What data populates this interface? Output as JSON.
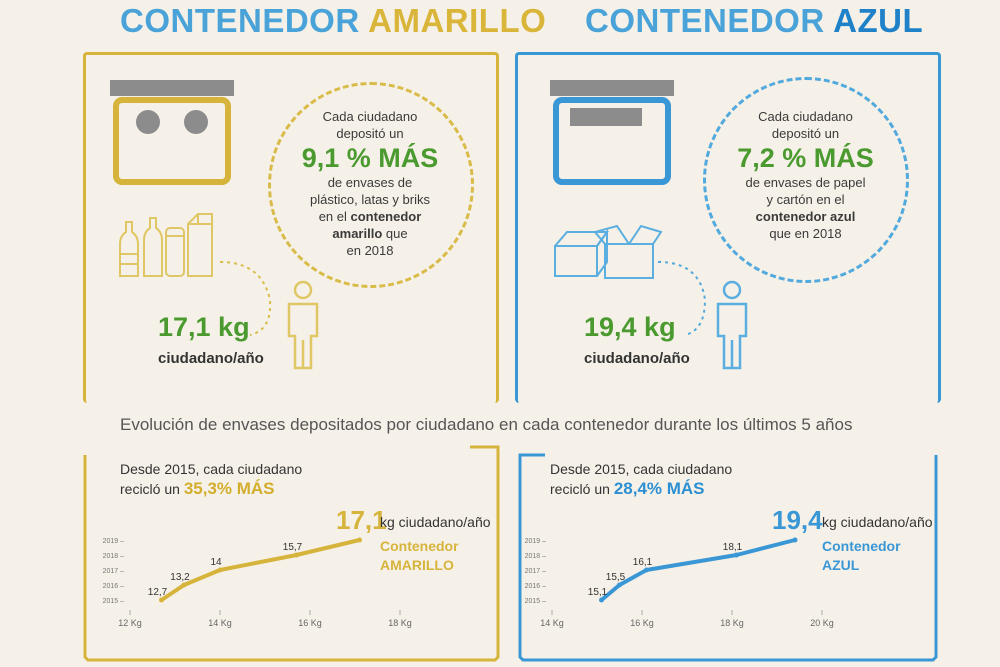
{
  "titles": {
    "left_word": "CONTENEDOR",
    "left_accent": "AMARILLO",
    "right_word": "CONTENEDOR",
    "right_accent": "AZUL"
  },
  "yellow": {
    "circle": {
      "line1": "Cada ciudadano",
      "line2": "depositó un",
      "pct": "9,1 % MÁS",
      "line3": "de envases de",
      "line4": "plástico, latas y briks",
      "line5_pre": "en el ",
      "line5_bold": "contenedor",
      "line6_bold": "amarillo",
      "line6_post": " que",
      "line7": "en 2018"
    },
    "kg_value": "17,1 kg",
    "kg_unit": "ciudadano/año",
    "since_line1": "Desde 2015, cada ciudadano",
    "since_pre": "recicló un ",
    "since_hl": "35,3% MÁS",
    "big_value": "17,1",
    "unit_label": "kg ciudadano/año",
    "cname1": "Contenedor",
    "cname2": "AMARILLO"
  },
  "blue": {
    "circle": {
      "line1": "Cada ciudadano",
      "line2": "depositó un",
      "pct": "7,2 % MÁS",
      "line3": "de envases de papel",
      "line4": "y cartón en el",
      "line5_bold": "contenedor azul",
      "line6": "que en 2018"
    },
    "kg_value": "19,4 kg",
    "kg_unit": "ciudadano/año",
    "since_line1": "Desde 2015, cada ciudadano",
    "since_pre": "recicló un ",
    "since_hl": "28,4% MÁS",
    "big_value": "19,4",
    "unit_label": "kg ciudadano/año",
    "cname1": "Contenedor",
    "cname2": "AZUL"
  },
  "evolution_title": "Evolución de envases depositados por ciudadano en cada contenedor durante los últimos 5 años",
  "colors": {
    "yellow": "#d6b43c",
    "blue": "#3a97d6",
    "green": "#4a9a2f",
    "icon_yellow": "#e0c765",
    "icon_blue": "#5aaee0"
  },
  "chart_data": [
    {
      "type": "line",
      "title": "",
      "xlabel": "",
      "ylabel": "",
      "x_unit": "Kg",
      "x_ticks": [
        12,
        14,
        16,
        18
      ],
      "x_tick_labels": [
        "12 Kg",
        "14 Kg",
        "16 Kg",
        "18 Kg"
      ],
      "y_categories": [
        "2015",
        "2016",
        "2017",
        "2018",
        "2019"
      ],
      "xlim": [
        12,
        18
      ],
      "series": [
        {
          "name": "Contenedor AMARILLO",
          "color": "#d6b43c",
          "points": [
            {
              "year": "2015",
              "value": 12.7,
              "label": "12,7"
            },
            {
              "year": "2016",
              "value": 13.2,
              "label": "13,2"
            },
            {
              "year": "2017",
              "value": 14,
              "label": "14"
            },
            {
              "year": "2018",
              "value": 15.7,
              "label": "15,7"
            },
            {
              "year": "2019",
              "value": 17.1,
              "label": "17,1"
            }
          ]
        }
      ]
    },
    {
      "type": "line",
      "title": "",
      "xlabel": "",
      "ylabel": "",
      "x_unit": "Kg",
      "x_ticks": [
        14,
        16,
        18,
        20
      ],
      "x_tick_labels": [
        "14 Kg",
        "16 Kg",
        "18 Kg",
        "20 Kg"
      ],
      "y_categories": [
        "2015",
        "2016",
        "2017",
        "2018",
        "2019"
      ],
      "xlim": [
        14,
        20
      ],
      "series": [
        {
          "name": "Contenedor AZUL",
          "color": "#3a97d6",
          "points": [
            {
              "year": "2015",
              "value": 15.1,
              "label": "15,1"
            },
            {
              "year": "2016",
              "value": 15.5,
              "label": "15,5"
            },
            {
              "year": "2017",
              "value": 16.1,
              "label": "16,1"
            },
            {
              "year": "2018",
              "value": 18.1,
              "label": "18,1"
            },
            {
              "year": "2019",
              "value": 19.4,
              "label": "19,4"
            }
          ]
        }
      ]
    }
  ]
}
